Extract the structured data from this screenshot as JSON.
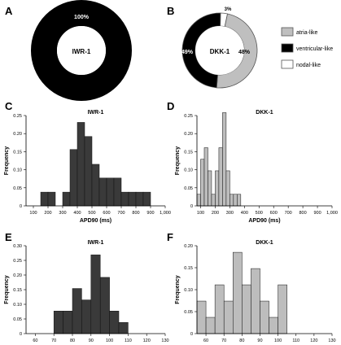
{
  "panel_letters": [
    "A",
    "B",
    "C",
    "D",
    "E",
    "F"
  ],
  "colors": {
    "ventricular": "#000000",
    "atria": "#bfbfbf",
    "nodal": "#ffffff",
    "hist_dark": "#3a3a3a",
    "hist_light": "#bdbdbd",
    "edge": "#555555"
  },
  "legend": {
    "items": [
      {
        "label": "atria-like",
        "color": "#bfbfbf"
      },
      {
        "label": "ventricular-like",
        "color": "#000000"
      },
      {
        "label": "nodal-like",
        "color": "#ffffff"
      }
    ]
  },
  "chart_data": [
    {
      "panel": "A",
      "type": "pie",
      "donut": true,
      "center_label": "IWR-1",
      "slices": [
        {
          "label": "ventricular-like",
          "value": 100,
          "text": "100%",
          "color": "#000000"
        }
      ]
    },
    {
      "panel": "B",
      "type": "pie",
      "donut": true,
      "center_label": "DKK-1",
      "slices": [
        {
          "label": "atria-like",
          "value": 48,
          "text": "48%",
          "color": "#bfbfbf"
        },
        {
          "label": "ventricular-like",
          "value": 49,
          "text": "49%",
          "color": "#000000"
        },
        {
          "label": "nodal-like",
          "value": 3,
          "text": "3%",
          "color": "#ffffff"
        }
      ]
    },
    {
      "panel": "C",
      "type": "bar",
      "title": "IWR-1",
      "xlabel": "APD90 (ms)",
      "ylabel": "Frequency",
      "xlim": [
        50,
        1000
      ],
      "ylim": [
        0,
        0.25
      ],
      "bin_width": 50,
      "xticks": [
        100,
        200,
        300,
        400,
        500,
        600,
        700,
        800,
        900,
        1000
      ],
      "xtick_labels": [
        "100",
        "200",
        "300",
        "400",
        "500",
        "600",
        "700",
        "800",
        "900",
        "1,000"
      ],
      "yticks": [
        0,
        0.05,
        0.1,
        0.15,
        0.2,
        0.25
      ],
      "ytick_labels": [
        "0",
        "0.05",
        "0.10",
        "0.15",
        "0.20",
        "0.25"
      ],
      "bins": [
        {
          "start": 150,
          "value": 0.038
        },
        {
          "start": 200,
          "value": 0.038
        },
        {
          "start": 300,
          "value": 0.038
        },
        {
          "start": 350,
          "value": 0.156
        },
        {
          "start": 400,
          "value": 0.231
        },
        {
          "start": 450,
          "value": 0.192
        },
        {
          "start": 500,
          "value": 0.115
        },
        {
          "start": 550,
          "value": 0.077
        },
        {
          "start": 600,
          "value": 0.077
        },
        {
          "start": 650,
          "value": 0.077
        },
        {
          "start": 700,
          "value": 0.038
        },
        {
          "start": 750,
          "value": 0.038
        },
        {
          "start": 800,
          "value": 0.038
        },
        {
          "start": 850,
          "value": 0.038
        }
      ],
      "color": "#3a3a3a"
    },
    {
      "panel": "D",
      "type": "bar",
      "title": "DKK-1",
      "xlabel": "APD90 (ms)",
      "ylabel": "Frequency",
      "xlim": [
        75,
        1000
      ],
      "ylim": [
        0,
        0.25
      ],
      "bin_width": 25,
      "xticks": [
        100,
        200,
        300,
        400,
        500,
        600,
        700,
        800,
        900,
        1000
      ],
      "xtick_labels": [
        "100",
        "200",
        "300",
        "400",
        "500",
        "600",
        "700",
        "800",
        "900",
        "1,000"
      ],
      "yticks": [
        0,
        0.05,
        0.1,
        0.15,
        0.2,
        0.25
      ],
      "ytick_labels": [
        "0",
        "0.05",
        "0.10",
        "0.15",
        "0.20",
        "0.25"
      ],
      "bins": [
        {
          "start": 75,
          "value": 0.032
        },
        {
          "start": 100,
          "value": 0.129
        },
        {
          "start": 125,
          "value": 0.161
        },
        {
          "start": 150,
          "value": 0.097
        },
        {
          "start": 175,
          "value": 0.032
        },
        {
          "start": 200,
          "value": 0.097
        },
        {
          "start": 225,
          "value": 0.161
        },
        {
          "start": 250,
          "value": 0.258
        },
        {
          "start": 275,
          "value": 0.097
        },
        {
          "start": 300,
          "value": 0.032
        },
        {
          "start": 325,
          "value": 0.032
        },
        {
          "start": 350,
          "value": 0.032
        }
      ],
      "color": "#bdbdbd"
    },
    {
      "panel": "E",
      "type": "bar",
      "title": "IWR-1",
      "xlabel": "APA (mV)",
      "ylabel": "Frequency",
      "xlim": [
        55,
        130
      ],
      "ylim": [
        0,
        0.3
      ],
      "bin_width": 5,
      "xticks": [
        60,
        70,
        80,
        90,
        100,
        110,
        120,
        130
      ],
      "xtick_labels": [
        "60",
        "70",
        "80",
        "90",
        "100",
        "110",
        "120",
        "130"
      ],
      "yticks": [
        0,
        0.05,
        0.1,
        0.15,
        0.2,
        0.25,
        0.3
      ],
      "ytick_labels": [
        "0",
        "0.05",
        "0.10",
        "0.15",
        "0.20",
        "0.25",
        "0.30"
      ],
      "bins": [
        {
          "start": 70,
          "value": 0.077
        },
        {
          "start": 75,
          "value": 0.077
        },
        {
          "start": 80,
          "value": 0.154
        },
        {
          "start": 85,
          "value": 0.115
        },
        {
          "start": 90,
          "value": 0.269
        },
        {
          "start": 95,
          "value": 0.192
        },
        {
          "start": 100,
          "value": 0.077
        },
        {
          "start": 105,
          "value": 0.038
        }
      ],
      "color": "#3a3a3a"
    },
    {
      "panel": "F",
      "type": "bar",
      "title": "DKK-1",
      "xlabel": "APA (mV)",
      "ylabel": "Frequency",
      "xlim": [
        55,
        130
      ],
      "ylim": [
        0,
        0.2
      ],
      "bin_width": 5,
      "xticks": [
        60,
        70,
        80,
        90,
        100,
        110,
        120,
        130
      ],
      "xtick_labels": [
        "60",
        "70",
        "80",
        "90",
        "100",
        "110",
        "120",
        "130"
      ],
      "yticks": [
        0,
        0.05,
        0.1,
        0.15,
        0.2
      ],
      "ytick_labels": [
        "0",
        "0.05",
        "0.10",
        "0.15",
        "0.20"
      ],
      "bins": [
        {
          "start": 55,
          "value": 0.074
        },
        {
          "start": 60,
          "value": 0.037
        },
        {
          "start": 65,
          "value": 0.111
        },
        {
          "start": 70,
          "value": 0.074
        },
        {
          "start": 75,
          "value": 0.185
        },
        {
          "start": 80,
          "value": 0.111
        },
        {
          "start": 85,
          "value": 0.148
        },
        {
          "start": 90,
          "value": 0.074
        },
        {
          "start": 95,
          "value": 0.037
        },
        {
          "start": 100,
          "value": 0.111
        }
      ],
      "color": "#bdbdbd"
    }
  ]
}
